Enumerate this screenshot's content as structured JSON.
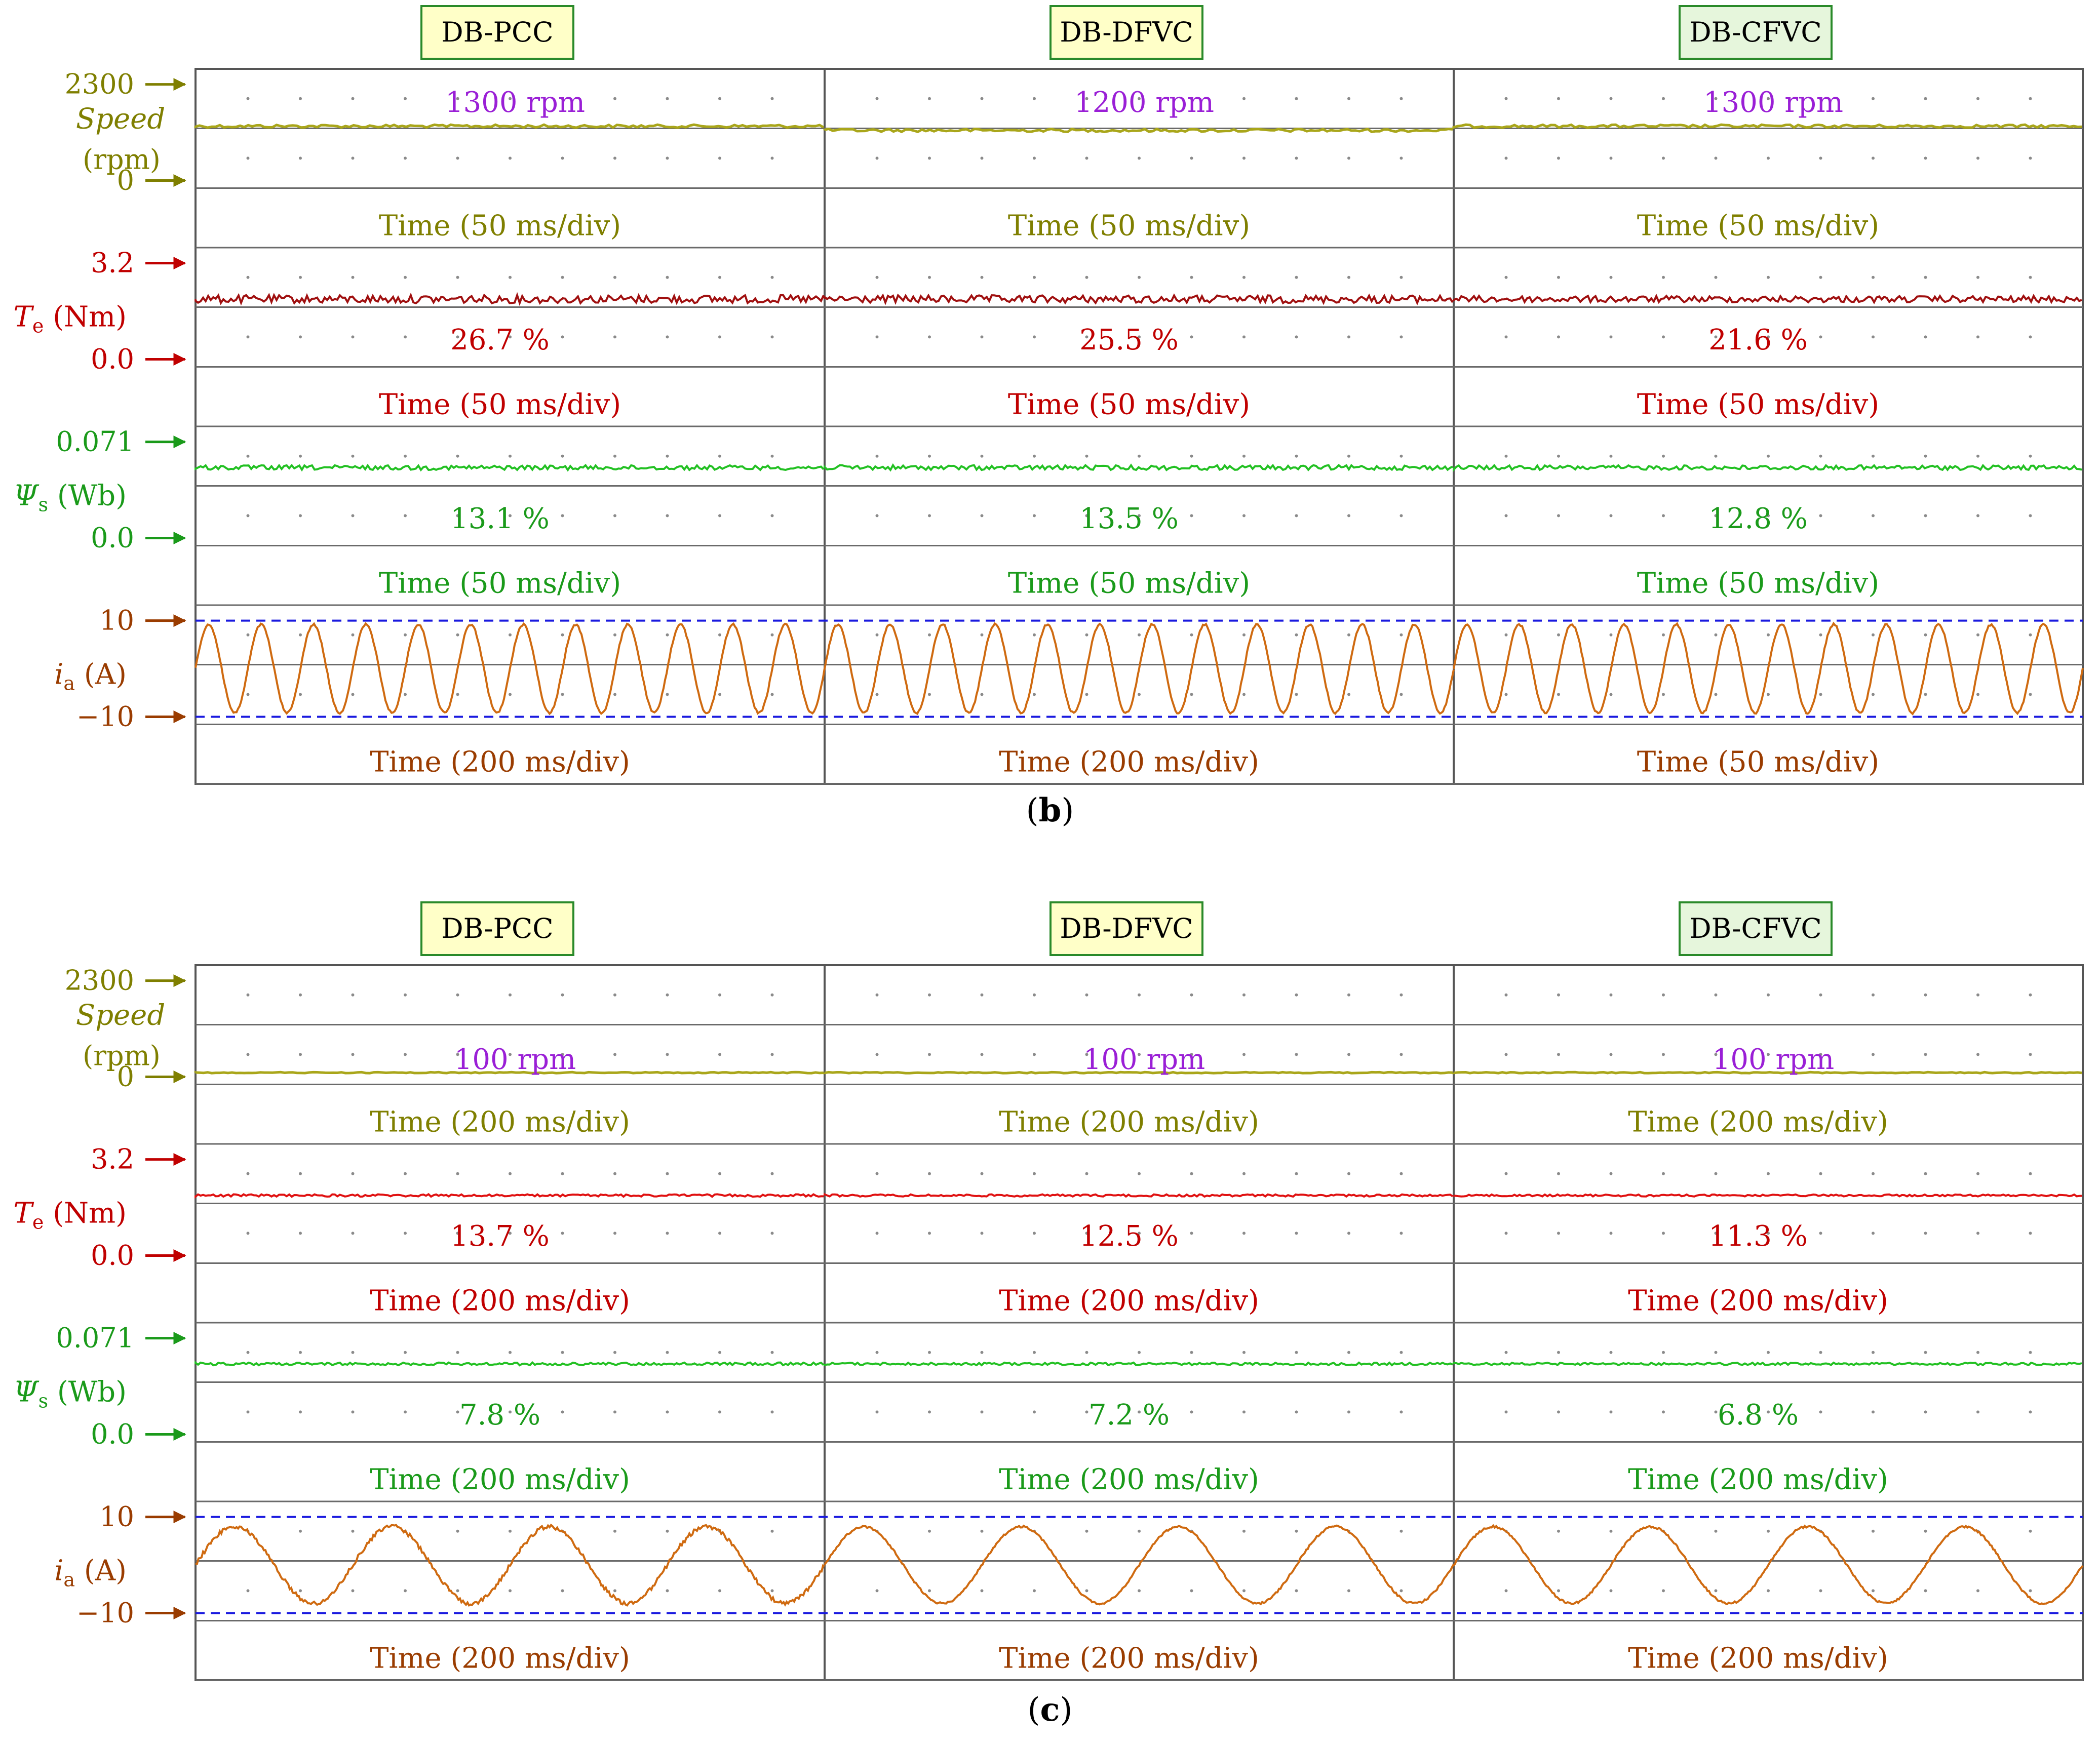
{
  "figure": {
    "columns": [
      "DB-PCC",
      "DB-DFVC",
      "DB-CFVC"
    ],
    "channels": [
      {
        "key": "speed",
        "name": "Speed",
        "unit": "(rpm)",
        "top_tick": "2300",
        "bottom_tick": "0",
        "color": "#7f7f00"
      },
      {
        "key": "torque",
        "name": "T",
        "sub": "e",
        "unit": " (Nm)",
        "top_tick": "3.2",
        "bottom_tick": "0.0",
        "color": "#c00000"
      },
      {
        "key": "flux",
        "name": "Ψ",
        "sub": "s",
        "unit": " (Wb)",
        "top_tick": "0.071",
        "bottom_tick": "0.0",
        "color": "#1a9a1a"
      },
      {
        "key": "current",
        "name": "i",
        "sub": "a",
        "unit": " (A)",
        "top_tick": "10",
        "bottom_tick": "−10",
        "color": "#9a3c00"
      }
    ],
    "colors": {
      "speed_label": "#7f7f00",
      "speed_value": "#9a1fd6",
      "torque": "#c00000",
      "flux": "#1a9a1a",
      "current": "#9a3c00",
      "current_trace": "#cf6a10",
      "dashed_limit": "#1a1adf",
      "title_box_fill": "#ffffc8",
      "title_box_fill_cfvc": "#e6f6dc",
      "title_box_border": "#2a8a2a"
    }
  },
  "chart_data": [
    {
      "type": "line",
      "label": "(b)",
      "panels": [
        {
          "title": "DB-PCC",
          "speed": {
            "value_rpm": 1300,
            "label": "1300 rpm",
            "timebase": "Time (50 ms/div)"
          },
          "torque": {
            "mean_nm": 2.0,
            "ripple": "26.7 %",
            "timebase": "Time (50 ms/div)"
          },
          "flux": {
            "mean_wb": 0.052,
            "ripple": "13.1 %",
            "timebase": "Time (50 ms/div)"
          },
          "current": {
            "amplitude_a": 9.2,
            "cycles": 12,
            "limits_a": [
              10,
              -10
            ],
            "timebase": "Time (200 ms/div)"
          }
        },
        {
          "title": "DB-DFVC",
          "speed": {
            "value_rpm": 1200,
            "label": "1200 rpm",
            "timebase": "Time (50 ms/div)"
          },
          "torque": {
            "mean_nm": 2.0,
            "ripple": "25.5 %",
            "timebase": "Time (50 ms/div)"
          },
          "flux": {
            "mean_wb": 0.052,
            "ripple": "13.5 %",
            "timebase": "Time (50 ms/div)"
          },
          "current": {
            "amplitude_a": 9.2,
            "cycles": 12,
            "limits_a": [
              10,
              -10
            ],
            "timebase": "Time (200 ms/div)"
          }
        },
        {
          "title": "DB-CFVC",
          "speed": {
            "value_rpm": 1300,
            "label": "1300 rpm",
            "timebase": "Time (50 ms/div)"
          },
          "torque": {
            "mean_nm": 2.0,
            "ripple": "21.6 %",
            "timebase": "Time (50 ms/div)"
          },
          "flux": {
            "mean_wb": 0.052,
            "ripple": "12.8 %",
            "timebase": "Time (50 ms/div)"
          },
          "current": {
            "amplitude_a": 9.2,
            "cycles": 12,
            "limits_a": [
              10,
              -10
            ],
            "timebase": "Time (50 ms/div)"
          }
        }
      ]
    },
    {
      "type": "line",
      "label": "(c)",
      "panels": [
        {
          "title": "DB-PCC",
          "speed": {
            "value_rpm": 100,
            "label": "100 rpm",
            "timebase": "Time (200 ms/div)"
          },
          "torque": {
            "mean_nm": 2.0,
            "ripple": "13.7 %",
            "timebase": "Time (200 ms/div)"
          },
          "flux": {
            "mean_wb": 0.052,
            "ripple": "7.8 %",
            "timebase": "Time (200 ms/div)"
          },
          "current": {
            "amplitude_a": 8.0,
            "cycles": 4,
            "limits_a": [
              10,
              -10
            ],
            "timebase": "Time (200 ms/div)"
          }
        },
        {
          "title": "DB-DFVC",
          "speed": {
            "value_rpm": 100,
            "label": "100 rpm",
            "timebase": "Time (200 ms/div)"
          },
          "torque": {
            "mean_nm": 2.0,
            "ripple": "12.5 %",
            "timebase": "Time (200 ms/div)"
          },
          "flux": {
            "mean_wb": 0.052,
            "ripple": "7.2 %",
            "timebase": "Time (200 ms/div)"
          },
          "current": {
            "amplitude_a": 8.0,
            "cycles": 4,
            "limits_a": [
              10,
              -10
            ],
            "timebase": "Time (200 ms/div)"
          }
        },
        {
          "title": "DB-CFVC",
          "speed": {
            "value_rpm": 100,
            "label": "100 rpm",
            "timebase": "Time (200 ms/div)"
          },
          "torque": {
            "mean_nm": 2.0,
            "ripple": "11.3 %",
            "timebase": "Time (200 ms/div)"
          },
          "flux": {
            "mean_wb": 0.052,
            "ripple": "6.8 %",
            "timebase": "Time (200 ms/div)"
          },
          "current": {
            "amplitude_a": 8.0,
            "cycles": 4,
            "limits_a": [
              10,
              -10
            ],
            "timebase": "Time (200 ms/div)"
          }
        }
      ]
    }
  ]
}
